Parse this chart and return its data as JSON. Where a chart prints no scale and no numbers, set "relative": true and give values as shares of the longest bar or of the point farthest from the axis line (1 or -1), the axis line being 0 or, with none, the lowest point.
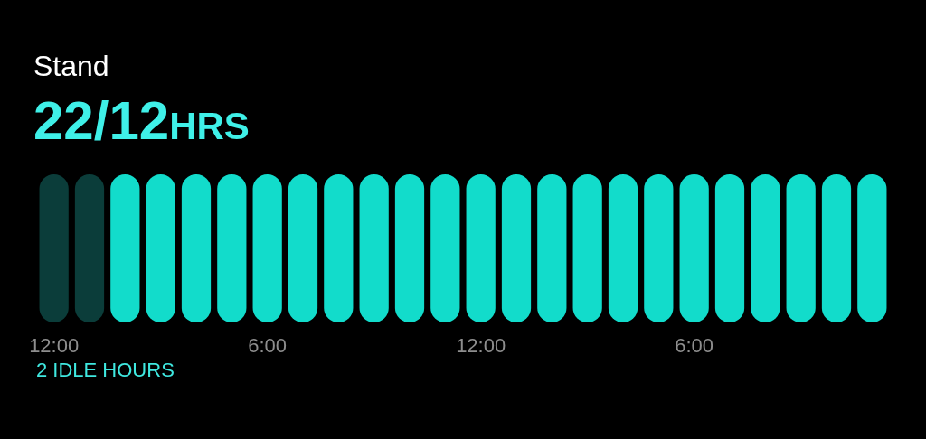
{
  "chart_data": {
    "type": "bar",
    "title": "Stand",
    "subtitle": "22/12HRS",
    "categories": [
      "12:00",
      null,
      null,
      null,
      null,
      null,
      "6:00",
      null,
      null,
      null,
      null,
      null,
      "12:00",
      null,
      null,
      null,
      null,
      null,
      "6:00",
      null,
      null,
      null,
      null,
      null
    ],
    "values": [
      1,
      1,
      1,
      1,
      1,
      1,
      1,
      1,
      1,
      1,
      1,
      1,
      1,
      1,
      1,
      1,
      1,
      1,
      1,
      1,
      1,
      1,
      1,
      1
    ],
    "colors": [
      "#0b3d3a",
      "#0b3d3a",
      "#12dccb",
      "#12dccb",
      "#12dccb",
      "#12dccb",
      "#12dccb",
      "#12dccb",
      "#12dccb",
      "#12dccb",
      "#12dccb",
      "#12dccb",
      "#12dccb",
      "#12dccb",
      "#12dccb",
      "#12dccb",
      "#12dccb",
      "#12dccb",
      "#12dccb",
      "#12dccb",
      "#12dccb",
      "#12dccb",
      "#12dccb",
      "#12dccb"
    ],
    "relative": true,
    "grid": false,
    "annotations": [
      "2 IDLE HOURS"
    ]
  }
}
